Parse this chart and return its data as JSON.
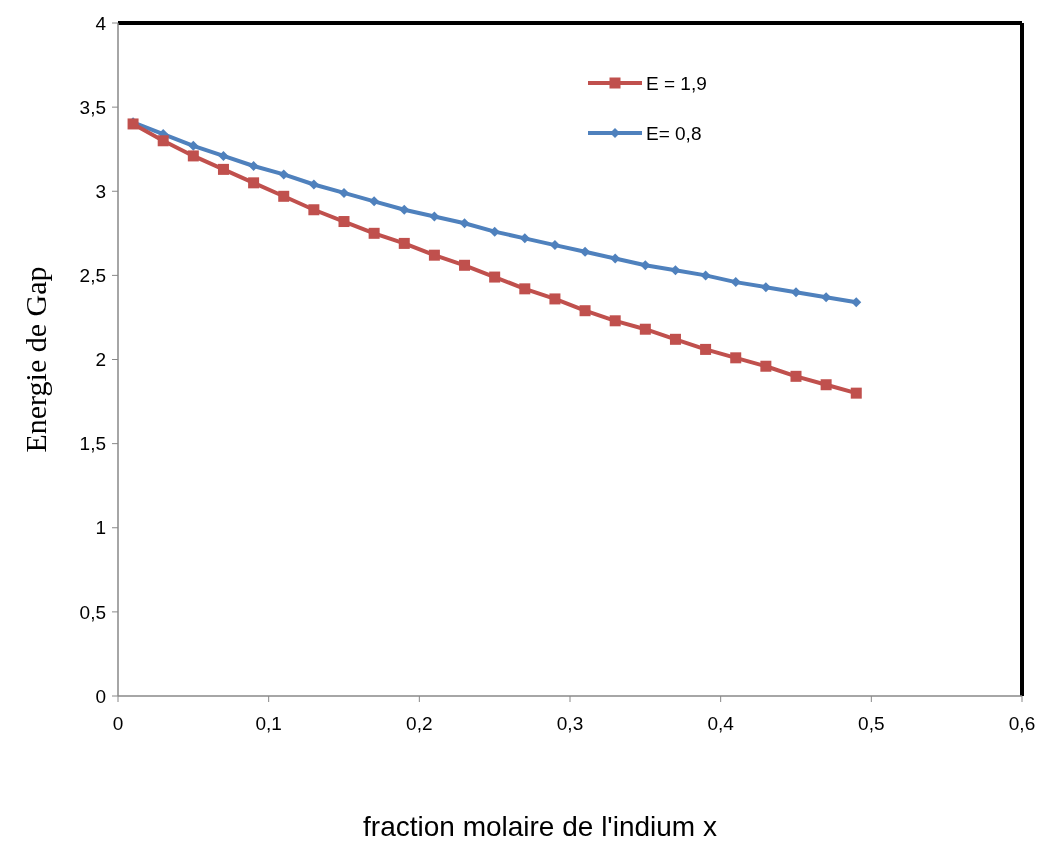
{
  "chart_data": {
    "type": "line",
    "xlabel": "fraction molaire de l'indium x",
    "ylabel": "Energie de Gap",
    "x": [
      0.01,
      0.03,
      0.05,
      0.07,
      0.09,
      0.11,
      0.13,
      0.15,
      0.17,
      0.19,
      0.21,
      0.23,
      0.25,
      0.27,
      0.29,
      0.31,
      0.33,
      0.35,
      0.37,
      0.39,
      0.41,
      0.43,
      0.45,
      0.47,
      0.49
    ],
    "series": [
      {
        "name": "E = 1,9",
        "color": "#c0504d",
        "marker": "square",
        "values": [
          3.4,
          3.3,
          3.21,
          3.13,
          3.05,
          2.97,
          2.89,
          2.82,
          2.75,
          2.69,
          2.62,
          2.56,
          2.49,
          2.42,
          2.36,
          2.29,
          2.23,
          2.18,
          2.12,
          2.06,
          2.01,
          1.96,
          1.9,
          1.85,
          1.8
        ]
      },
      {
        "name": "E= 0,8",
        "color": "#4f81bd",
        "marker": "diamond",
        "values": [
          3.41,
          3.34,
          3.27,
          3.21,
          3.15,
          3.1,
          3.04,
          2.99,
          2.94,
          2.89,
          2.85,
          2.81,
          2.76,
          2.72,
          2.68,
          2.64,
          2.6,
          2.56,
          2.53,
          2.5,
          2.46,
          2.43,
          2.4,
          2.37,
          2.34
        ]
      }
    ],
    "xlim": [
      0,
      0.6
    ],
    "xticks": [
      0,
      {
        "value": 0.1,
        "label": "0,1"
      },
      {
        "value": 0.2,
        "label": "0,2"
      },
      {
        "value": 0.3,
        "label": "0,3"
      },
      {
        "value": 0.4,
        "label": "0,4"
      },
      {
        "value": 0.5,
        "label": "0,5"
      },
      {
        "value": 0.6,
        "label": "0,6"
      }
    ],
    "ylim": [
      0,
      4
    ],
    "yticks": [
      0,
      {
        "value": 0.5,
        "label": "0,5"
      },
      1,
      {
        "value": 1.5,
        "label": "1,5"
      },
      2,
      {
        "value": 2.5,
        "label": "2,5"
      },
      3,
      {
        "value": 3.5,
        "label": "3,5"
      },
      4
    ],
    "grid": false,
    "legend": "top right",
    "line_style": "solid"
  }
}
